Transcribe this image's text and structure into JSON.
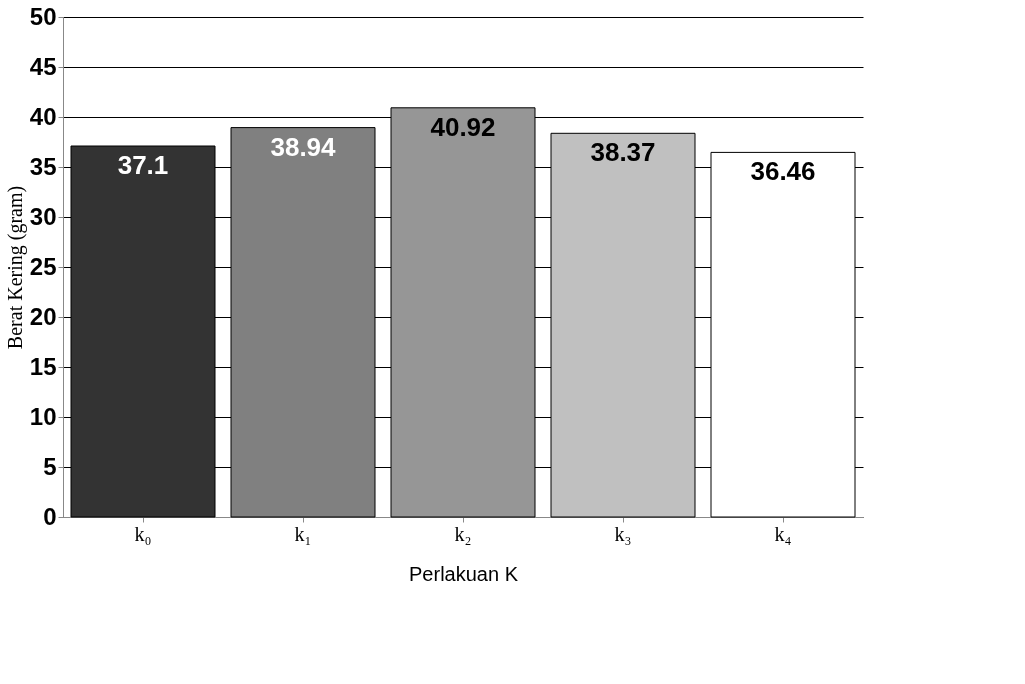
{
  "chart_data": {
    "type": "bar",
    "xlabel": "Perlakuan K",
    "ylabel": "Berat Kering (gram)",
    "categories": [
      "k₀",
      "k₁",
      "k₂",
      "k₃",
      "k₄"
    ],
    "values": [
      37.1,
      38.94,
      40.92,
      38.37,
      36.46
    ],
    "colors": [
      "#333333",
      "#808080",
      "#969696",
      "#c0c0c0",
      "#ffffff"
    ],
    "ylim": [
      0,
      50
    ],
    "yticks": [
      0,
      5,
      10,
      15,
      20,
      25,
      30,
      35,
      40,
      45,
      50
    ],
    "grid": "y",
    "data_labels": true
  }
}
